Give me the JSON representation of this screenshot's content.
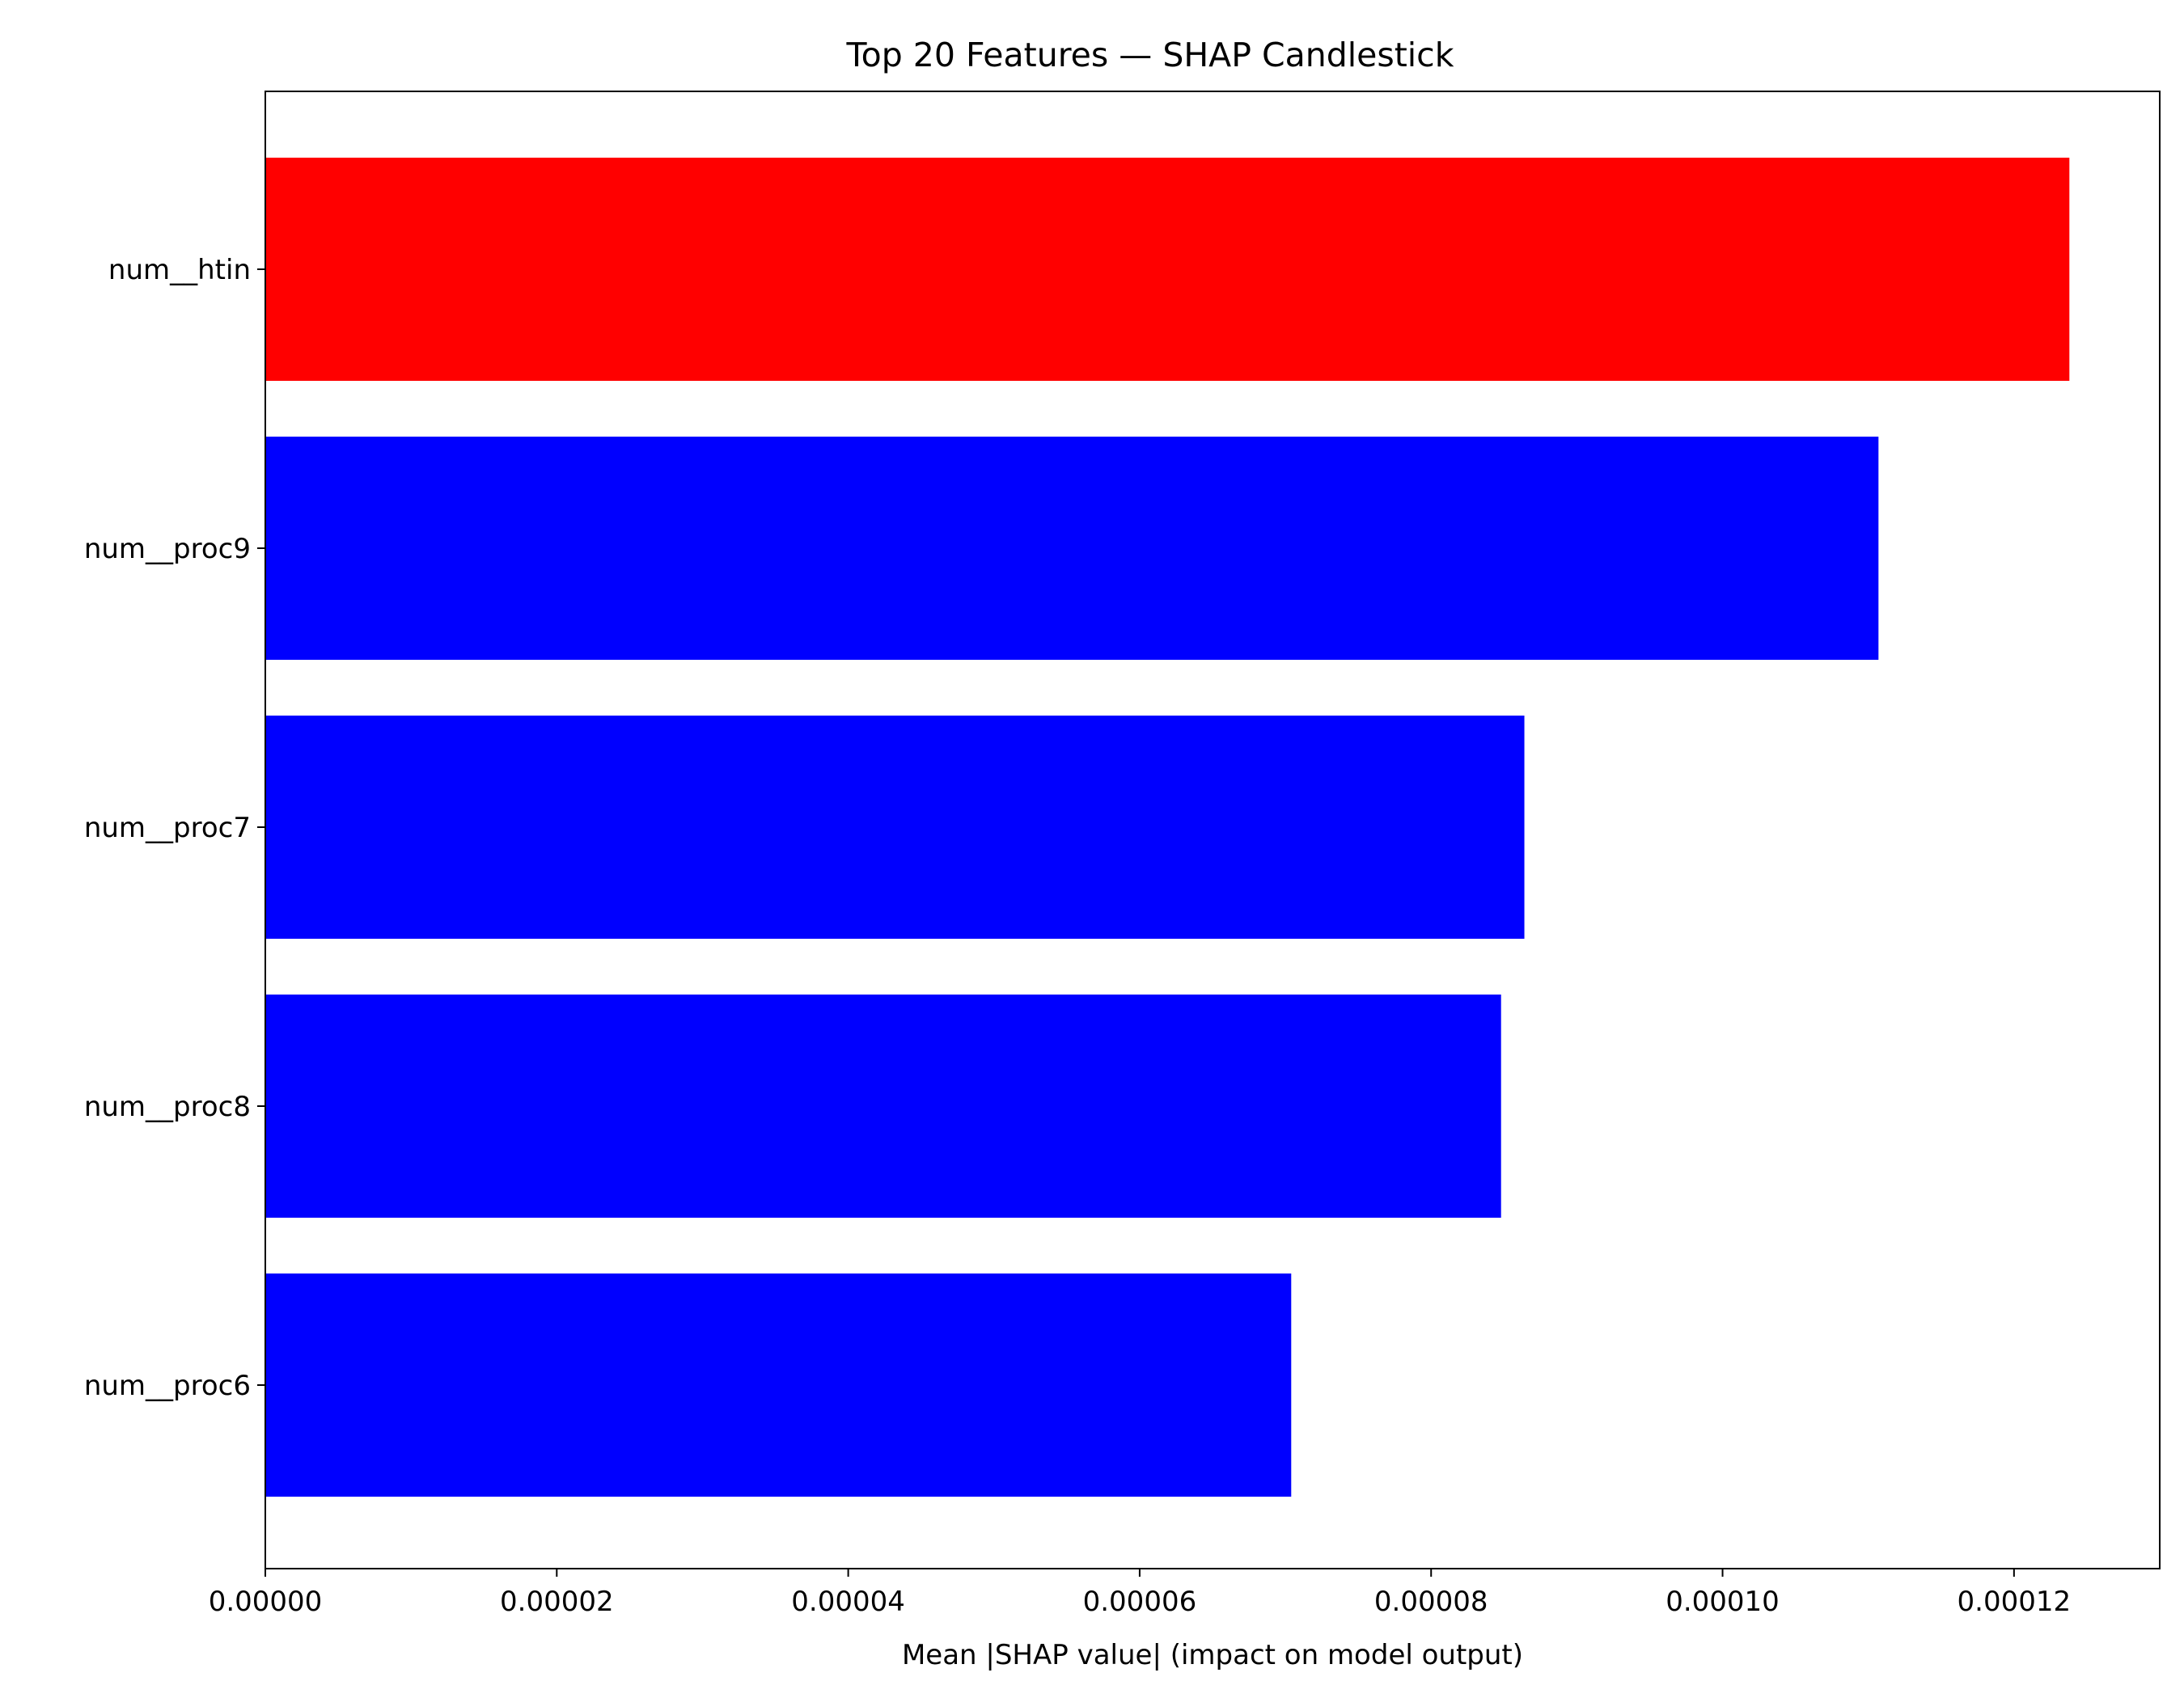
{
  "chart_data": {
    "type": "bar",
    "orientation": "horizontal",
    "title": "Top 20 Features — SHAP Candlestick",
    "xlabel": "Mean |SHAP value| (impact on model output)",
    "ylabel": "",
    "categories": [
      "num__htin",
      "num__proc9",
      "num__proc7",
      "num__proc8",
      "num__proc6"
    ],
    "values": [
      0.0001238,
      0.0001107,
      8.64e-05,
      8.48e-05,
      7.04e-05
    ],
    "bar_colors": [
      "#ff0000",
      "#0000ff",
      "#0000ff",
      "#0000ff",
      "#0000ff"
    ],
    "xlim": [
      0,
      0.00013
    ],
    "xticks": [
      0,
      2e-05,
      4e-05,
      6e-05,
      8e-05,
      0.0001,
      0.00012
    ],
    "xtick_labels": [
      "0.00000",
      "0.00002",
      "0.00004",
      "0.00006",
      "0.00008",
      "0.00010",
      "0.00012"
    ],
    "grid": false,
    "legend": "none"
  }
}
